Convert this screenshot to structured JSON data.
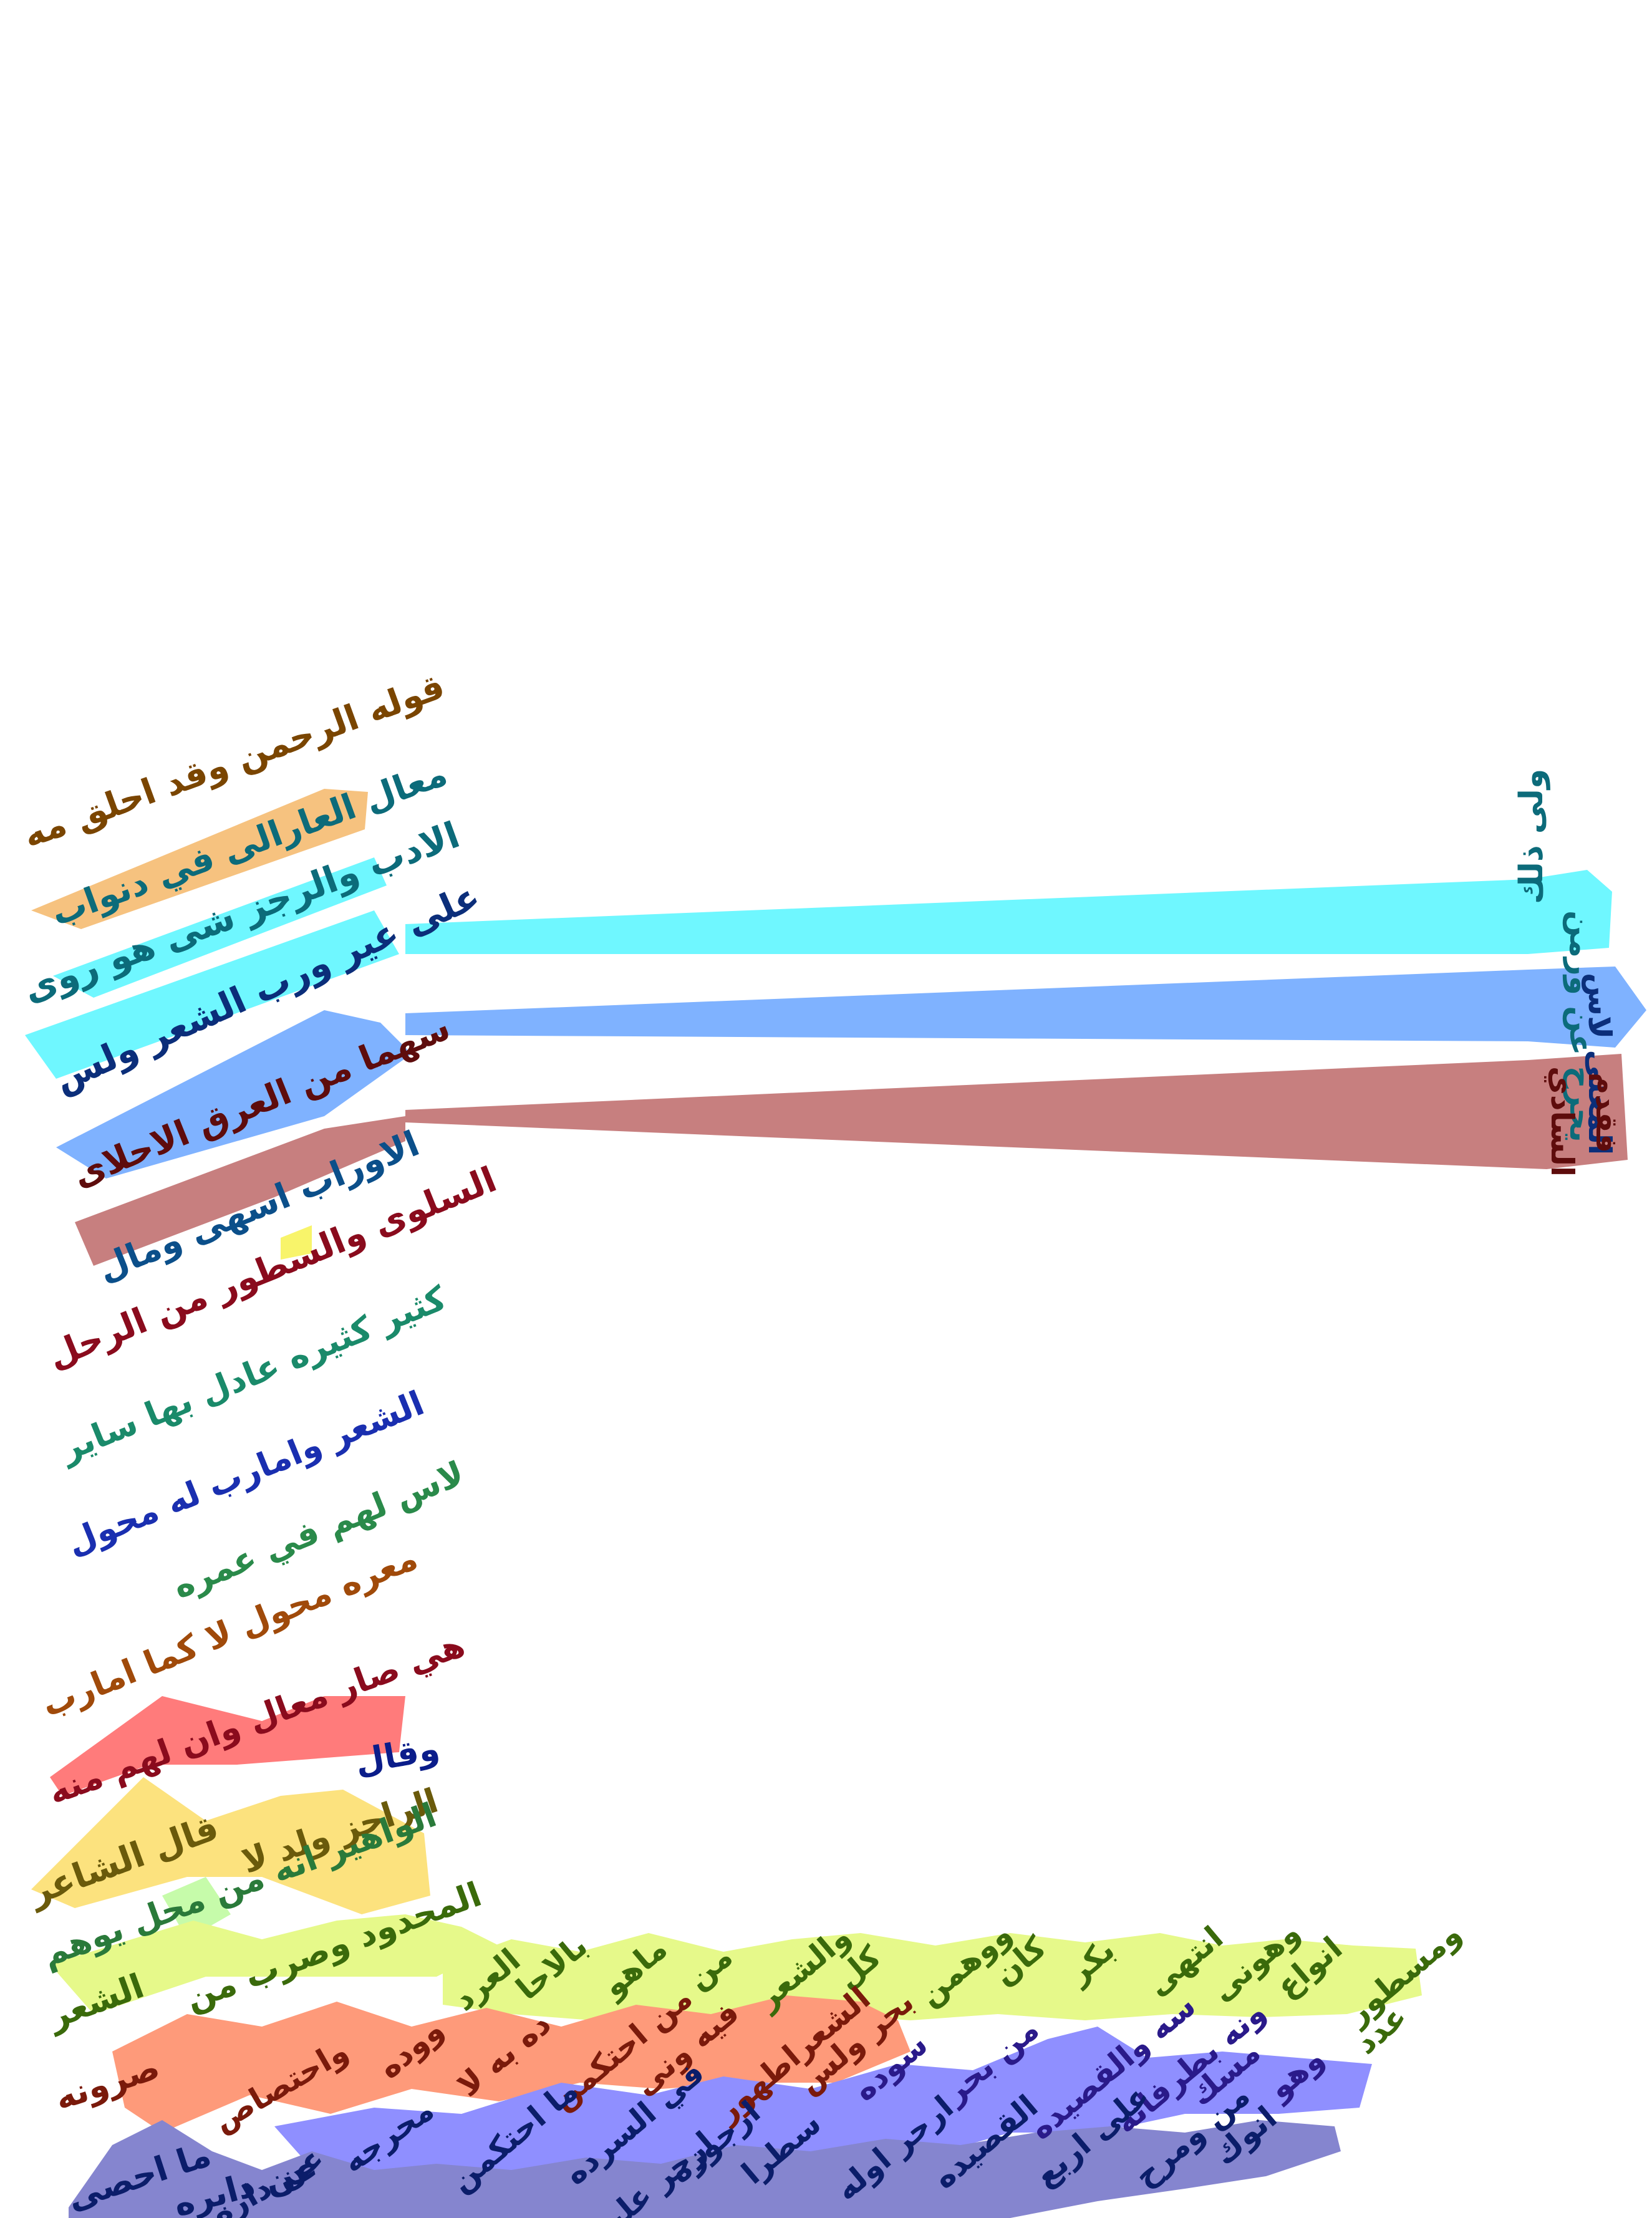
{
  "colors": {
    "orange": "#f6c27f",
    "cyan": "#6ff7ff",
    "blue": "#7fb2ff",
    "mauve": "#c77f7f",
    "yellow": "#f8f46a",
    "green": "#e6f98a",
    "salmon": "#fe9a7a",
    "red": "#ff7b7b",
    "gold": "#fce27e",
    "mint": "#c6fbaa",
    "violet": "#8f8fff",
    "slate": "#8585cf"
  },
  "main_lines": [
    "قوله الرحمن وقد احلق مه",
    "معال العارالى في دنواب",
    "الادب والرجز شى هو روى",
    "على عير ورب الشعر ولس",
    "سهما من العرق الاحلاى",
    "الاوراب اسهى ومال",
    "السلوى والسطور من الرحل",
    "كثير كثيره عادل بها ساير",
    "الشعر وامارب له محول",
    "لاس لهم في عمره",
    "معره محول لا كما امارب",
    "هي صار معال وان لهم منه",
    "وقال",
    "قال الشاعر",
    "الراجز ولد لا",
    "الواهير انه من محل يوهم",
    "الشعر",
    "المحدود وصرب من",
    "صرونه",
    "ما احصى",
    "عن دابره"
  ],
  "margin_lines": [
    "ولى ذلك",
    "يحرح عن ورمن",
    "المعنى لاس",
    "السادي",
    "فقدم"
  ],
  "bottom_rows": {
    "row1": [
      "العرد",
      "بالاحا",
      "ماهو",
      "من",
      "والشعر",
      "كل",
      "ووهمن",
      "كان",
      "بكر",
      "انتهى",
      "وهونى",
      "انواع",
      "ومسطور",
      "عدد"
    ],
    "row2": [
      "ووده",
      "واحتصاص",
      "ده به لا",
      "من احتكمن",
      "فيه ونى",
      "الشعراطهور",
      "بحر ولس",
      "سوده",
      "من بحر",
      "سه والقصيده",
      "ونه بطرفاته",
      "مسك",
      "وهو"
    ],
    "row3": [
      "محرجه",
      "عن داره",
      "ما احتكمن",
      "في السرده",
      "ارجوزه",
      "ارجر عليه",
      "سطرا",
      "ارحر اوله",
      "القصيده",
      "على اربع",
      "من ومرح",
      "انوك"
    ]
  }
}
